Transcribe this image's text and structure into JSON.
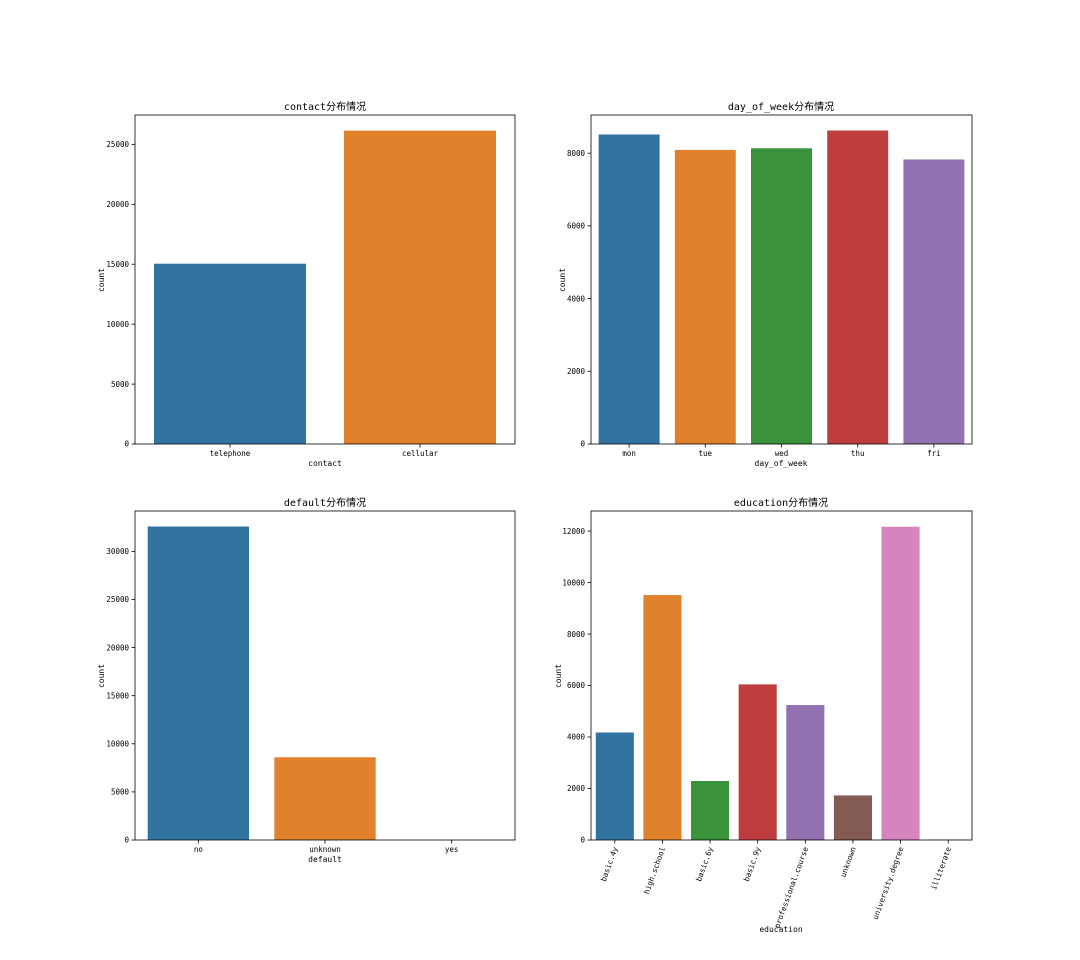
{
  "chart_data": [
    {
      "type": "bar",
      "title": "contact分布情况",
      "xlabel": "contact",
      "ylabel": "count",
      "categories": [
        "telephone",
        "cellular"
      ],
      "values": [
        15044,
        26144
      ],
      "colors": [
        "#3274a1",
        "#e1812c"
      ],
      "ylim": [
        0,
        27450
      ],
      "yticks": [
        0,
        5000,
        10000,
        15000,
        20000,
        25000
      ],
      "grid": false
    },
    {
      "type": "bar",
      "title": "day_of_week分布情况",
      "xlabel": "day_of_week",
      "ylabel": "count",
      "categories": [
        "mon",
        "tue",
        "wed",
        "thu",
        "fri"
      ],
      "values": [
        8514,
        8090,
        8134,
        8623,
        7827
      ],
      "colors": [
        "#3274a1",
        "#e1812c",
        "#3a923a",
        "#c03d3e",
        "#9372b2"
      ],
      "ylim": [
        0,
        9050
      ],
      "yticks": [
        0,
        2000,
        4000,
        6000,
        8000
      ],
      "grid": false
    },
    {
      "type": "bar",
      "title": "default分布情况",
      "xlabel": "default",
      "ylabel": "count",
      "categories": [
        "no",
        "unknown",
        "yes"
      ],
      "values": [
        32588,
        8597,
        3
      ],
      "colors": [
        "#3274a1",
        "#e1812c",
        "#3a923a"
      ],
      "ylim": [
        0,
        34200
      ],
      "yticks": [
        0,
        5000,
        10000,
        15000,
        20000,
        25000,
        30000
      ],
      "grid": false
    },
    {
      "type": "bar",
      "title": "education分布情况",
      "xlabel": "education",
      "ylabel": "count",
      "categories": [
        "basic.4y",
        "high.school",
        "basic.6y",
        "basic.9y",
        "professional.course",
        "unknown",
        "university.degree",
        "illiterate"
      ],
      "values": [
        4176,
        9515,
        2292,
        6045,
        5243,
        1731,
        12168,
        18
      ],
      "colors": [
        "#3274a1",
        "#e1812c",
        "#3a923a",
        "#c03d3e",
        "#9372b2",
        "#845b53",
        "#d684bd",
        "#7f7f7f"
      ],
      "ylim": [
        0,
        12780
      ],
      "yticks": [
        0,
        2000,
        4000,
        6000,
        8000,
        10000,
        12000
      ],
      "grid": false,
      "xtick_rotation": 70
    }
  ]
}
